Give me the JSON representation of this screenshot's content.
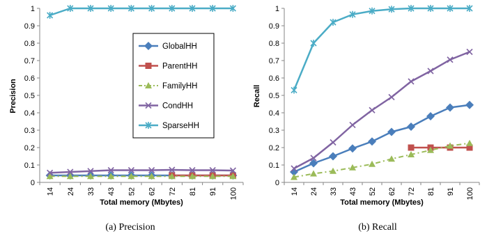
{
  "chart_data": [
    {
      "type": "line",
      "caption": "(a)  Precision",
      "xlabel": "Total memory (Mbytes)",
      "ylabel": "Precision",
      "ylim": [
        0,
        1
      ],
      "yticks": [
        0,
        0.1,
        0.2,
        0.3,
        0.4,
        0.5,
        0.6,
        0.7,
        0.8,
        0.9,
        1
      ],
      "ytick_labels": [
        "0",
        "0.1",
        "0.2",
        "0.3",
        "0.4",
        "0.5",
        "0.6",
        "0.7",
        "0.8",
        "0.9",
        "1"
      ],
      "categories": [
        "14",
        "24",
        "33",
        "43",
        "52",
        "62",
        "72",
        "81",
        "91",
        "100"
      ],
      "grid": false,
      "legend": {
        "placement": "center-right",
        "entries": [
          "GlobalHH",
          "ParentHH",
          "FamilyHH",
          "CondHH",
          "SparseHH"
        ]
      },
      "series": [
        {
          "name": "GlobalHH",
          "values": [
            0.04,
            0.04,
            0.04,
            0.04,
            0.04,
            0.04,
            0.04,
            0.04,
            0.04,
            0.04
          ]
        },
        {
          "name": "ParentHH",
          "values": [
            null,
            null,
            null,
            null,
            null,
            null,
            0.04,
            0.04,
            0.04,
            0.04
          ]
        },
        {
          "name": "FamilyHH",
          "values": [
            0.035,
            0.035,
            0.035,
            0.035,
            0.035,
            0.035,
            0.035,
            0.035,
            0.035,
            0.035
          ]
        },
        {
          "name": "CondHH",
          "values": [
            0.055,
            0.06,
            0.065,
            0.07,
            0.07,
            0.07,
            0.072,
            0.07,
            0.07,
            0.068
          ]
        },
        {
          "name": "SparseHH",
          "values": [
            0.96,
            1,
            1,
            1,
            1,
            1,
            1,
            1,
            1,
            1
          ]
        }
      ]
    },
    {
      "type": "line",
      "caption": "(b)  Recall",
      "xlabel": "Total memory (Mbytes)",
      "ylabel": "Recall",
      "ylim": [
        0,
        1
      ],
      "yticks": [
        0,
        0.1,
        0.2,
        0.3,
        0.4,
        0.5,
        0.6,
        0.7,
        0.8,
        0.9,
        1
      ],
      "ytick_labels": [
        "0",
        "0.1",
        "0.2",
        "0.3",
        "0.4",
        "0.5",
        "0.6",
        "0.7",
        "0.8",
        "0.9",
        "1"
      ],
      "categories": [
        "14",
        "24",
        "33",
        "43",
        "52",
        "62",
        "72",
        "81",
        "91",
        "100"
      ],
      "grid": false,
      "series": [
        {
          "name": "GlobalHH",
          "values": [
            0.06,
            0.11,
            0.15,
            0.195,
            0.235,
            0.29,
            0.32,
            0.38,
            0.43,
            0.445
          ]
        },
        {
          "name": "ParentHH",
          "values": [
            null,
            null,
            null,
            null,
            null,
            null,
            0.2,
            0.2,
            0.2,
            0.2
          ]
        },
        {
          "name": "FamilyHH",
          "values": [
            0.03,
            0.05,
            0.065,
            0.085,
            0.105,
            0.135,
            0.16,
            0.185,
            0.21,
            0.225
          ]
        },
        {
          "name": "CondHH",
          "values": [
            0.08,
            0.14,
            0.23,
            0.33,
            0.415,
            0.49,
            0.58,
            0.64,
            0.705,
            0.75
          ]
        },
        {
          "name": "SparseHH",
          "values": [
            0.53,
            0.8,
            0.92,
            0.965,
            0.985,
            0.995,
            1,
            1,
            1,
            1
          ]
        }
      ]
    }
  ],
  "colors": {
    "GlobalHH": "#4a7ebb",
    "ParentHH": "#c0504d",
    "FamilyHH": "#9bbb59",
    "CondHH": "#8064a2",
    "SparseHH": "#4bacc6",
    "axis": "#868686"
  },
  "markers": {
    "GlobalHH": "diamond",
    "ParentHH": "square",
    "FamilyHH": "triangle",
    "CondHH": "x",
    "SparseHH": "asterisk"
  }
}
